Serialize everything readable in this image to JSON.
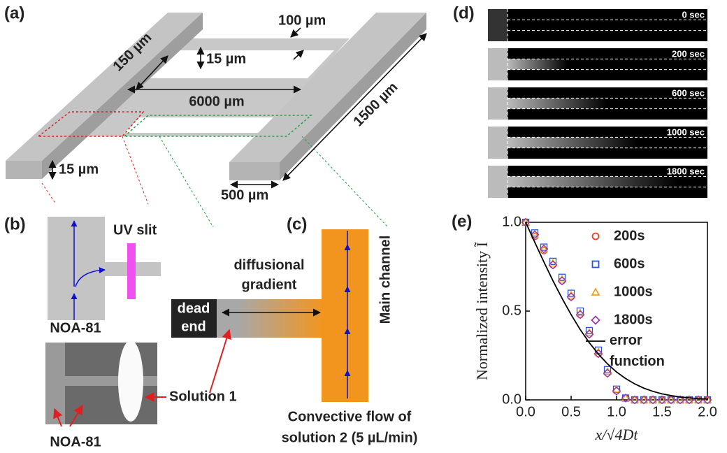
{
  "panel_labels": [
    "(a)",
    "(b)",
    "(c)",
    "(d)",
    "(e)"
  ],
  "panel_a": {
    "dims": [
      "100 µm",
      "15 µm",
      "150 µm",
      "6000 µm",
      "1500 µm",
      "15 µm",
      "500 µm"
    ]
  },
  "panel_b": {
    "uv_slit": "UV slit",
    "noa_top": "NOA-81",
    "solution": "Solution 1",
    "noa_bottom": "NOA-81"
  },
  "panel_c": {
    "dead_end": [
      "dead",
      "end"
    ],
    "gradient": [
      "diffusional",
      "gradient"
    ],
    "main_channel": "Main channel",
    "flow": [
      "Convective flow of",
      "solution 2 (5 µL/min)"
    ]
  },
  "panel_d": {
    "times": [
      "0 sec",
      "200 sec",
      "600 sec",
      "1000 sec",
      "1800 sec"
    ]
  },
  "chart_data": {
    "type": "scatter",
    "x_label": "x/√4Dt",
    "y_label": "Normalized intensity Ĩ",
    "x": [
      0,
      0.1,
      0.2,
      0.3,
      0.4,
      0.5,
      0.6,
      0.7,
      0.8,
      0.9,
      1.0,
      1.1,
      1.2,
      1.3,
      1.4,
      1.5,
      1.6,
      1.7,
      1.8,
      1.9,
      2.0
    ],
    "series": [
      {
        "name": "200s",
        "color": "#e8412a",
        "marker": "circle",
        "values": [
          1.0,
          0.92,
          0.84,
          0.76,
          0.67,
          0.58,
          0.48,
          0.37,
          0.26,
          0.15,
          0.05,
          0.01,
          0,
          0,
          0,
          0,
          0,
          0,
          0,
          0,
          0
        ]
      },
      {
        "name": "600s",
        "color": "#2a54d8",
        "marker": "square",
        "values": [
          1.0,
          0.94,
          0.86,
          0.78,
          0.69,
          0.6,
          0.5,
          0.39,
          0.28,
          0.17,
          0.06,
          0.01,
          0,
          0,
          0,
          0,
          0,
          0,
          0,
          0,
          0
        ]
      },
      {
        "name": "1000s",
        "color": "#f0a020",
        "marker": "triangle",
        "values": [
          1.0,
          0.93,
          0.85,
          0.77,
          0.68,
          0.59,
          0.49,
          0.38,
          0.27,
          0.16,
          0.06,
          0.01,
          0,
          0,
          0,
          0,
          0,
          0,
          0,
          0,
          0
        ]
      },
      {
        "name": "1800s",
        "color": "#9a3aa8",
        "marker": "diamond",
        "values": [
          1.0,
          0.93,
          0.85,
          0.76,
          0.67,
          0.58,
          0.48,
          0.37,
          0.26,
          0.15,
          0.05,
          0.01,
          0,
          0,
          0,
          0,
          0,
          0,
          0,
          0,
          0
        ]
      },
      {
        "name": "error function",
        "color": "#000000",
        "marker": "line",
        "values": [
          1.0,
          0.888,
          0.777,
          0.671,
          0.572,
          0.48,
          0.396,
          0.322,
          0.258,
          0.203,
          0.157,
          0.12,
          0.09,
          0.066,
          0.048,
          0.034,
          0.024,
          0.016,
          0.011,
          0.007,
          0.005
        ]
      }
    ],
    "xlim": [
      0,
      2
    ],
    "ylim": [
      0,
      1
    ],
    "xticks": [
      {
        "value": 0,
        "label": "0.0"
      },
      {
        "value": 0.5,
        "label": "0.5"
      },
      {
        "value": 1,
        "label": "1.0"
      },
      {
        "value": 1.5,
        "label": "1.5"
      },
      {
        "value": 2,
        "label": "2.0"
      }
    ],
    "yticks": [
      {
        "value": 0,
        "label": "0.0"
      },
      {
        "value": 0.5,
        "label": "0.5"
      },
      {
        "value": 1,
        "label": "1.0"
      }
    ],
    "legend": "upper right"
  }
}
